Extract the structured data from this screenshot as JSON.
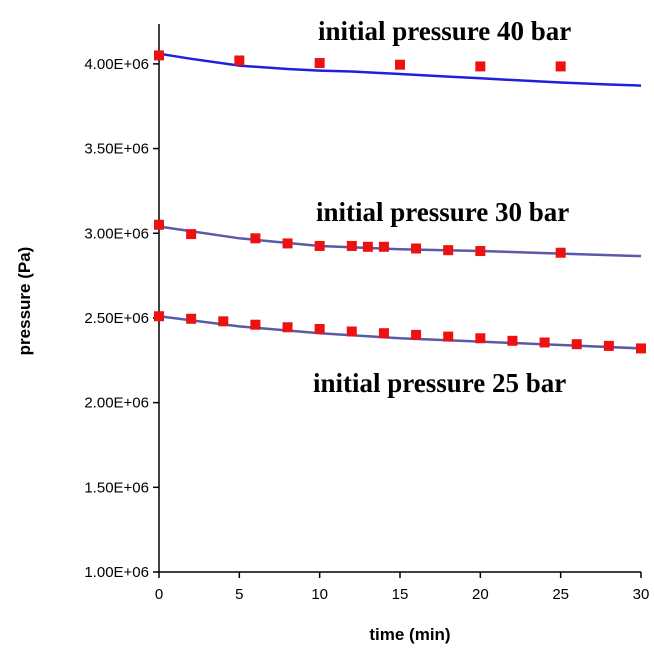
{
  "chart_data": {
    "type": "scatter",
    "xlabel": "time (min)",
    "ylabel": "pressure (Pa)",
    "xlim": [
      0,
      30
    ],
    "ylim": [
      1000000,
      4200000
    ],
    "x_ticks": [
      0,
      5,
      10,
      15,
      20,
      25,
      30
    ],
    "x_tick_labels": [
      "0",
      "5",
      "10",
      "15",
      "20",
      "25",
      "30"
    ],
    "y_ticks": [
      1000000,
      1500000,
      2000000,
      2500000,
      3000000,
      3500000,
      4000000
    ],
    "y_tick_labels": [
      "1.00E+06",
      "1.50E+06",
      "2.00E+06",
      "2.50E+06",
      "3.00E+06",
      "3.50E+06",
      "4.00E+06"
    ],
    "grid": false,
    "legend": "none",
    "annotations": [
      {
        "text": "initial pressure 40 bar",
        "series": 0
      },
      {
        "text": "initial pressure 30 bar",
        "series": 1
      },
      {
        "text": "initial pressure 25 bar",
        "series": 2
      }
    ],
    "series": [
      {
        "line_color": "#1f1fdd",
        "marker_color": "#ee1111",
        "points": {
          "x": [
            0,
            5,
            10,
            15,
            20,
            25
          ],
          "y": [
            4050000,
            4020000,
            4005000,
            3995000,
            3985000,
            3985000
          ]
        },
        "line": {
          "x": [
            0,
            2,
            5,
            8,
            10,
            12,
            15,
            18,
            20,
            22,
            25,
            28,
            30
          ],
          "y": [
            4060000,
            4030000,
            3990000,
            3970000,
            3960000,
            3955000,
            3940000,
            3925000,
            3915000,
            3905000,
            3890000,
            3878000,
            3872000
          ]
        }
      },
      {
        "line_color": "#5a5aa8",
        "marker_color": "#ee1111",
        "points": {
          "x": [
            0,
            2,
            6,
            8,
            10,
            12,
            13,
            14,
            16,
            18,
            20,
            25
          ],
          "y": [
            3050000,
            2995000,
            2970000,
            2940000,
            2925000,
            2925000,
            2920000,
            2920000,
            2910000,
            2900000,
            2895000,
            2885000
          ]
        },
        "line": {
          "x": [
            0,
            5,
            10,
            15,
            20,
            25,
            30
          ],
          "y": [
            3040000,
            2970000,
            2925000,
            2905000,
            2895000,
            2880000,
            2865000
          ]
        }
      },
      {
        "line_color": "#5a5aa8",
        "marker_color": "#ee1111",
        "points": {
          "x": [
            0,
            2,
            4,
            6,
            8,
            10,
            12,
            14,
            16,
            18,
            20,
            22,
            24,
            26,
            28,
            30
          ],
          "y": [
            2510000,
            2495000,
            2480000,
            2460000,
            2445000,
            2435000,
            2420000,
            2410000,
            2400000,
            2390000,
            2380000,
            2365000,
            2355000,
            2345000,
            2335000,
            2320000
          ]
        },
        "line": {
          "x": [
            0,
            5,
            10,
            15,
            20,
            25,
            30
          ],
          "y": [
            2510000,
            2450000,
            2410000,
            2380000,
            2360000,
            2340000,
            2320000
          ]
        }
      }
    ]
  }
}
